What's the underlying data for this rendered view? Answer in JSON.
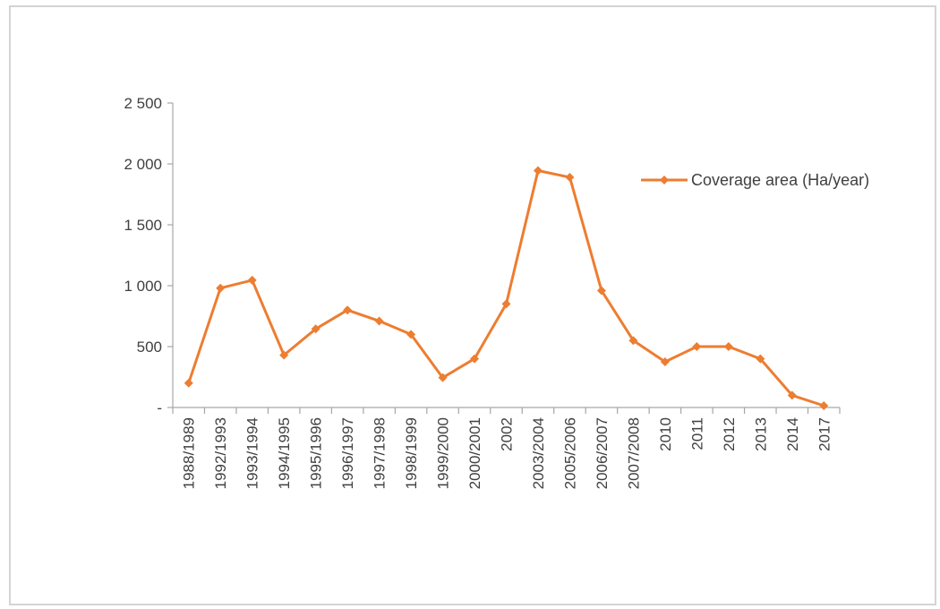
{
  "chart_data": {
    "type": "line",
    "title": "",
    "xlabel": "",
    "ylabel": "",
    "categories": [
      "1988/1989",
      "1992/1993",
      "1993/1994",
      "1994/1995",
      "1995/1996",
      "1996/1997",
      "1997/1998",
      "1998/1999",
      "1999/2000",
      "2000/2001",
      "2002",
      "2003/2004",
      "2005/2006",
      "2006/2007",
      "2007/2008",
      "2010",
      "2011",
      "2012",
      "2013",
      "2014",
      "2017"
    ],
    "series": [
      {
        "name": "Coverage area (Ha/year)",
        "color": "#ED7D31",
        "values": [
          200,
          980,
          1045,
          430,
          645,
          800,
          710,
          600,
          245,
          400,
          850,
          1945,
          1890,
          960,
          550,
          375,
          500,
          500,
          400,
          100,
          15
        ]
      }
    ],
    "ylim": [
      0,
      2500
    ],
    "y_ticks": [
      {
        "value": 0,
        "label": "-"
      },
      {
        "value": 500,
        "label": "500"
      },
      {
        "value": 1000,
        "label": "1 000"
      },
      {
        "value": 1500,
        "label": "1 500"
      },
      {
        "value": 2000,
        "label": "2 000"
      },
      {
        "value": 2500,
        "label": "2 500"
      }
    ],
    "grid": false,
    "legend_position": "right",
    "axis_color": "#a6a6a6",
    "text_color": "#404040"
  }
}
